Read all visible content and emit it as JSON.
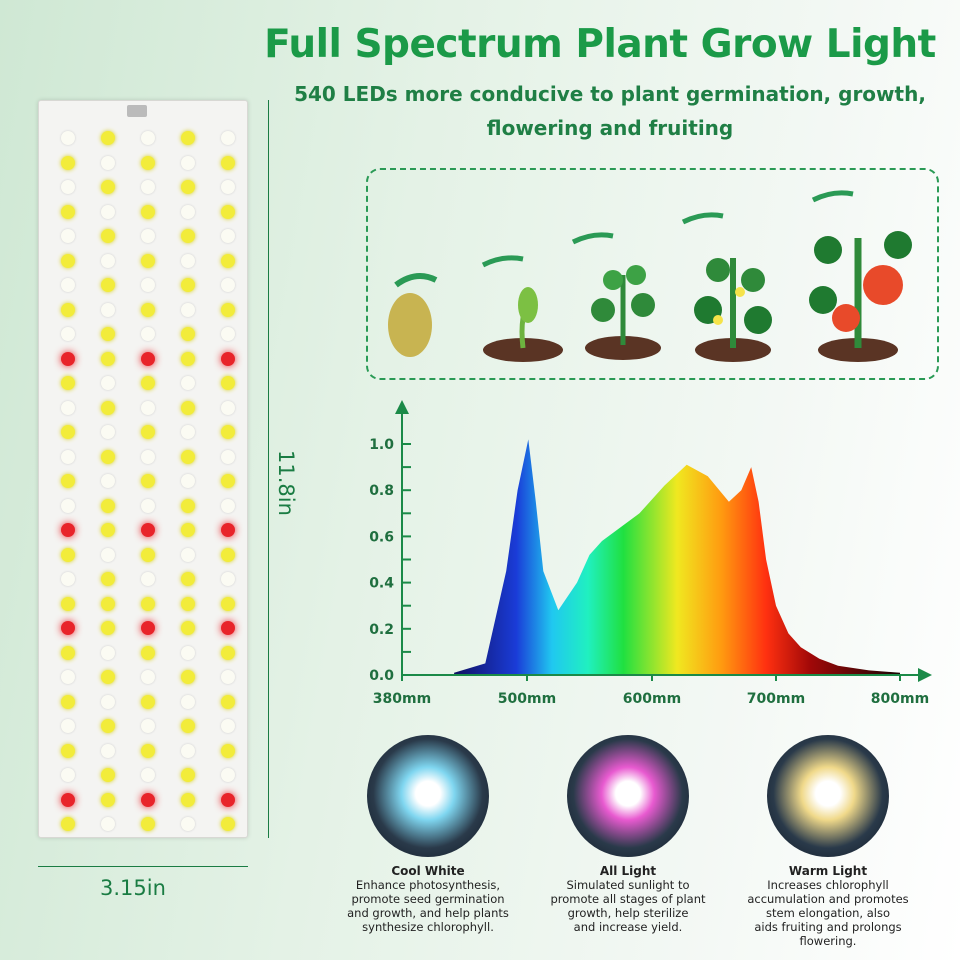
{
  "title": "Full Spectrum Plant Grow Light",
  "subtitle_line1": "540 LEDs more conducive to plant germination, growth,",
  "subtitle_line2": "flowering and fruiting",
  "dimensions": {
    "height": "11.8in",
    "width": "3.15in"
  },
  "led_colors": {
    "yellow": "#f2ec3a",
    "white": "#fbfbf3",
    "red": "#e8242a"
  },
  "brand_color": "#1b9a48",
  "growth_stages": [
    "seed",
    "sprout",
    "seedling",
    "flowering",
    "fruiting"
  ],
  "chart_data": {
    "type": "area",
    "title": "",
    "xlabel": "",
    "ylabel": "",
    "x_tick_labels": [
      "380mm",
      "500mm",
      "600mm",
      "700mm",
      "800mm"
    ],
    "y_tick_labels": [
      "0.0",
      "0.2",
      "0.4",
      "0.6",
      "0.8",
      "1.0"
    ],
    "ylim": [
      0,
      1.1
    ],
    "grid": false,
    "x": [
      430,
      460,
      480,
      491,
      501,
      507,
      513,
      525,
      540,
      550,
      560,
      590,
      610,
      628,
      645,
      662,
      672,
      680,
      686,
      692,
      700,
      710,
      720,
      735,
      750,
      775,
      800
    ],
    "y": [
      0.01,
      0.05,
      0.45,
      0.8,
      1.02,
      0.75,
      0.45,
      0.28,
      0.4,
      0.52,
      0.58,
      0.7,
      0.82,
      0.91,
      0.86,
      0.75,
      0.8,
      0.9,
      0.75,
      0.5,
      0.3,
      0.18,
      0.12,
      0.07,
      0.04,
      0.02,
      0.01
    ]
  },
  "light_types": [
    {
      "title": "Cool White",
      "lines": [
        "Enhance photosynthesis,",
        "promote seed germination",
        "and growth, and help plants",
        "synthesize chlorophyll."
      ],
      "color": "#7fd6f0"
    },
    {
      "title": "All Light",
      "lines": [
        "Simulated sunlight to",
        "promote all stages of plant",
        "growth, help sterilize",
        "and increase yield."
      ],
      "color": "#e85ad0"
    },
    {
      "title": "Warm Light",
      "lines": [
        "Increases chlorophyll",
        "accumulation and promotes",
        "stem elongation, also",
        "aids fruiting and prolongs",
        "flowering."
      ],
      "color": "#f0d98a"
    }
  ]
}
